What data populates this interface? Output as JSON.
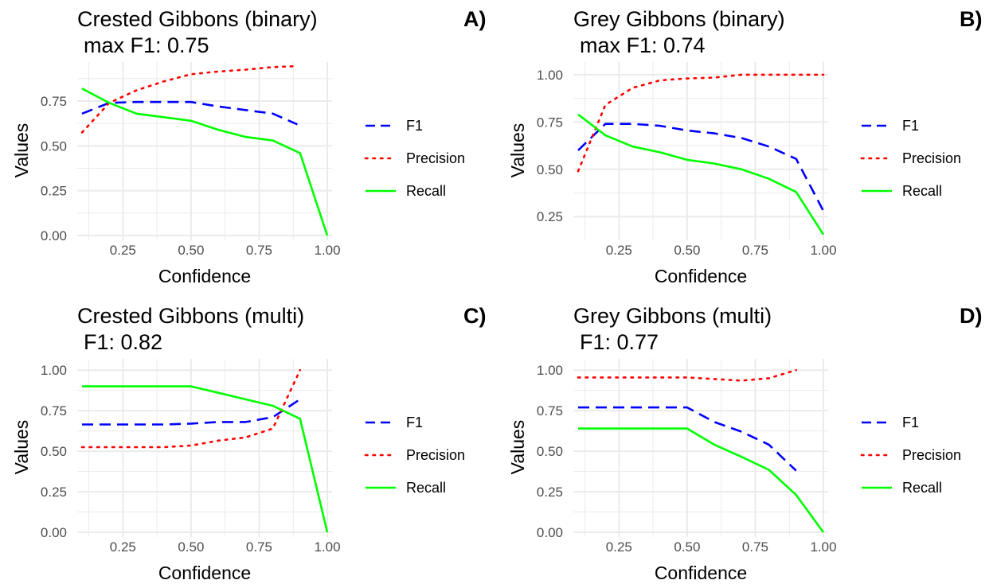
{
  "chart_data": [
    {
      "type": "line",
      "title": "Crested Gibbons (binary)",
      "subtitle": "max F1: 0.75",
      "panel_tag": "A)",
      "xlabel": "Confidence",
      "ylabel": "Values",
      "xlim": [
        0.1,
        1.0
      ],
      "ylim": [
        0.0,
        0.95
      ],
      "xticks": [
        0.25,
        0.5,
        0.75,
        1.0
      ],
      "xtick_labels": [
        "0.25",
        "0.50",
        "0.75",
        "1.00"
      ],
      "yticks": [
        0.0,
        0.25,
        0.5,
        0.75
      ],
      "ytick_labels": [
        "0.00",
        "0.25",
        "0.50",
        "0.75"
      ],
      "grid": true,
      "legend_position": "right",
      "series": [
        {
          "name": "F1",
          "color": "#0000ff",
          "dash": "dashed",
          "x": [
            0.1,
            0.2,
            0.3,
            0.4,
            0.5,
            0.6,
            0.7,
            0.8,
            0.89
          ],
          "y": [
            0.68,
            0.74,
            0.745,
            0.745,
            0.745,
            0.72,
            0.7,
            0.68,
            0.62
          ]
        },
        {
          "name": "Precision",
          "color": "#ff0000",
          "dash": "dotted",
          "x": [
            0.1,
            0.2,
            0.3,
            0.4,
            0.5,
            0.6,
            0.7,
            0.8,
            0.89
          ],
          "y": [
            0.575,
            0.74,
            0.81,
            0.86,
            0.9,
            0.915,
            0.925,
            0.94,
            0.945
          ]
        },
        {
          "name": "Recall",
          "color": "#00ff00",
          "dash": "solid",
          "x": [
            0.1,
            0.2,
            0.3,
            0.4,
            0.5,
            0.6,
            0.7,
            0.8,
            0.9,
            1.0
          ],
          "y": [
            0.82,
            0.74,
            0.68,
            0.66,
            0.64,
            0.59,
            0.55,
            0.53,
            0.46,
            0.0
          ]
        }
      ]
    },
    {
      "type": "line",
      "title": "Grey Gibbons (binary)",
      "subtitle": "max F1: 0.74",
      "panel_tag": "B)",
      "xlabel": "Confidence",
      "ylabel": "Values",
      "xlim": [
        0.1,
        1.0
      ],
      "ylim": [
        0.15,
        1.05
      ],
      "xticks": [
        0.25,
        0.5,
        0.75,
        1.0
      ],
      "xtick_labels": [
        "0.25",
        "0.50",
        "0.75",
        "1.00"
      ],
      "yticks": [
        0.25,
        0.5,
        0.75,
        1.0
      ],
      "ytick_labels": [
        "0.25",
        "0.50",
        "0.75",
        "1.00"
      ],
      "grid": true,
      "legend_position": "right",
      "series": [
        {
          "name": "F1",
          "color": "#0000ff",
          "dash": "dashed",
          "x": [
            0.1,
            0.2,
            0.3,
            0.4,
            0.5,
            0.6,
            0.7,
            0.8,
            0.9,
            1.0
          ],
          "y": [
            0.6,
            0.74,
            0.74,
            0.73,
            0.705,
            0.69,
            0.665,
            0.62,
            0.555,
            0.28
          ]
        },
        {
          "name": "Precision",
          "color": "#ff0000",
          "dash": "dotted",
          "x": [
            0.1,
            0.2,
            0.3,
            0.4,
            0.5,
            0.6,
            0.7,
            0.8,
            0.9,
            1.0
          ],
          "y": [
            0.49,
            0.84,
            0.93,
            0.97,
            0.98,
            0.985,
            1.0,
            1.0,
            1.0,
            1.0
          ]
        },
        {
          "name": "Recall",
          "color": "#00ff00",
          "dash": "solid",
          "x": [
            0.1,
            0.2,
            0.3,
            0.4,
            0.5,
            0.6,
            0.7,
            0.8,
            0.9,
            1.0
          ],
          "y": [
            0.79,
            0.68,
            0.62,
            0.59,
            0.55,
            0.53,
            0.5,
            0.45,
            0.38,
            0.155
          ]
        }
      ]
    },
    {
      "type": "line",
      "title": "Crested Gibbons (multi)",
      "subtitle": "F1: 0.82",
      "panel_tag": "C)",
      "xlabel": "Confidence",
      "ylabel": "Values",
      "xlim": [
        0.1,
        1.0
      ],
      "ylim": [
        0.0,
        1.05
      ],
      "xticks": [
        0.25,
        0.5,
        0.75,
        1.0
      ],
      "xtick_labels": [
        "0.25",
        "0.50",
        "0.75",
        "1.00"
      ],
      "yticks": [
        0.0,
        0.25,
        0.5,
        0.75,
        1.0
      ],
      "ytick_labels": [
        "0.00",
        "0.25",
        "0.50",
        "0.75",
        "1.00"
      ],
      "grid": true,
      "legend_position": "right",
      "series": [
        {
          "name": "F1",
          "color": "#0000ff",
          "dash": "dashed",
          "x": [
            0.1,
            0.2,
            0.3,
            0.4,
            0.5,
            0.6,
            0.7,
            0.8,
            0.9
          ],
          "y": [
            0.665,
            0.665,
            0.665,
            0.665,
            0.67,
            0.68,
            0.68,
            0.71,
            0.82
          ]
        },
        {
          "name": "Precision",
          "color": "#ff0000",
          "dash": "dotted",
          "x": [
            0.1,
            0.2,
            0.3,
            0.4,
            0.5,
            0.6,
            0.7,
            0.8,
            0.9
          ],
          "y": [
            0.525,
            0.525,
            0.525,
            0.525,
            0.535,
            0.565,
            0.585,
            0.64,
            1.0
          ]
        },
        {
          "name": "Recall",
          "color": "#00ff00",
          "dash": "solid",
          "x": [
            0.1,
            0.2,
            0.3,
            0.4,
            0.5,
            0.6,
            0.7,
            0.8,
            0.9,
            1.0
          ],
          "y": [
            0.9,
            0.9,
            0.9,
            0.9,
            0.9,
            0.86,
            0.82,
            0.78,
            0.7,
            0.0
          ]
        }
      ]
    },
    {
      "type": "line",
      "title": "Grey Gibbons (multi)",
      "subtitle": "F1: 0.77",
      "panel_tag": "D)",
      "xlabel": "Confidence",
      "ylabel": "Values",
      "xlim": [
        0.1,
        1.0
      ],
      "ylim": [
        0.0,
        1.05
      ],
      "xticks": [
        0.25,
        0.5,
        0.75,
        1.0
      ],
      "xtick_labels": [
        "0.25",
        "0.50",
        "0.75",
        "1.00"
      ],
      "yticks": [
        0.0,
        0.25,
        0.5,
        0.75,
        1.0
      ],
      "ytick_labels": [
        "0.00",
        "0.25",
        "0.50",
        "0.75",
        "1.00"
      ],
      "grid": true,
      "legend_position": "right",
      "series": [
        {
          "name": "F1",
          "color": "#0000ff",
          "dash": "dashed",
          "x": [
            0.1,
            0.2,
            0.3,
            0.4,
            0.5,
            0.6,
            0.7,
            0.8,
            0.9
          ],
          "y": [
            0.77,
            0.77,
            0.77,
            0.77,
            0.77,
            0.68,
            0.62,
            0.54,
            0.38
          ]
        },
        {
          "name": "Precision",
          "color": "#ff0000",
          "dash": "dotted",
          "x": [
            0.1,
            0.2,
            0.3,
            0.4,
            0.5,
            0.6,
            0.7,
            0.8,
            0.9
          ],
          "y": [
            0.955,
            0.955,
            0.955,
            0.955,
            0.955,
            0.945,
            0.935,
            0.95,
            1.0
          ]
        },
        {
          "name": "Recall",
          "color": "#00ff00",
          "dash": "solid",
          "x": [
            0.1,
            0.2,
            0.3,
            0.4,
            0.5,
            0.6,
            0.7,
            0.8,
            0.9,
            1.0
          ],
          "y": [
            0.64,
            0.64,
            0.64,
            0.64,
            0.64,
            0.54,
            0.465,
            0.385,
            0.23,
            0.0
          ]
        }
      ]
    }
  ]
}
